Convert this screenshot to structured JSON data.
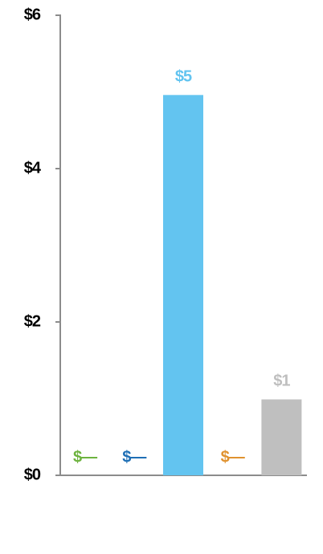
{
  "chart_data": {
    "type": "bar",
    "categories": [
      null,
      null,
      null,
      null,
      null
    ],
    "values": [
      0,
      0,
      4.96,
      0,
      0.99
    ],
    "value_labels": [
      "$—",
      "$—",
      "$5",
      "$—",
      "$1"
    ],
    "colors": [
      "#6db33f",
      "#1f6fb5",
      "#63c4f0",
      "#e0922f",
      "#bfbfbf"
    ],
    "ylim": [
      0,
      6
    ],
    "yticks": [
      {
        "value": 0,
        "label": "$0"
      },
      {
        "value": 2,
        "label": "$2"
      },
      {
        "value": 4,
        "label": "$4"
      },
      {
        "value": 6,
        "label": "$6"
      }
    ],
    "grid": false
  }
}
